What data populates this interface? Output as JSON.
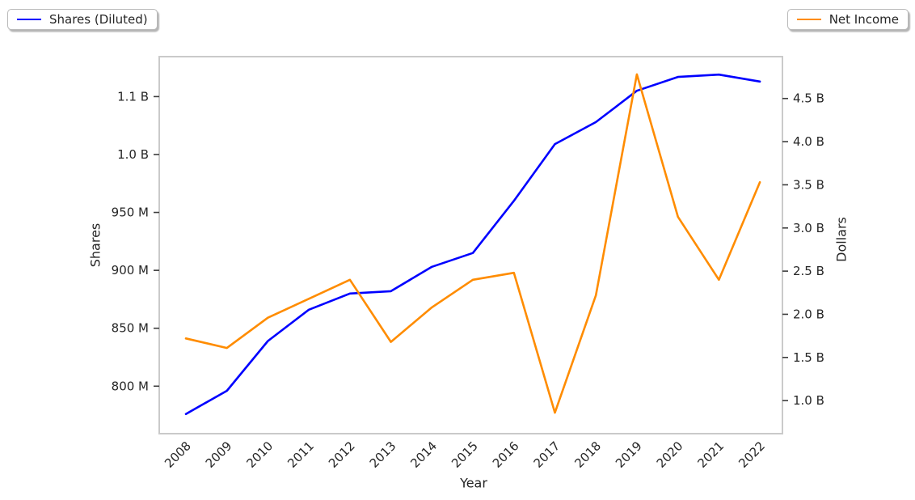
{
  "legend_left": {
    "label": "Shares (Diluted)"
  },
  "legend_right": {
    "label": "Net Income"
  },
  "colors": {
    "shares_line": "#0000ff",
    "net_income_line": "#ff8c00",
    "spine": "#cacaca",
    "tick_mark": "#3c3c3c",
    "text": "#262626",
    "background": "#ffffff"
  },
  "chart_data": {
    "type": "line",
    "title": "",
    "xlabel": "Year",
    "x": [
      2008,
      2009,
      2010,
      2011,
      2012,
      2013,
      2014,
      2015,
      2016,
      2017,
      2018,
      2019,
      2020,
      2021,
      2022
    ],
    "series": [
      {
        "name": "Shares (Diluted)",
        "axis": "left",
        "color": "#0000ff",
        "unit": "shares (millions)",
        "values": [
          776,
          796,
          839,
          866,
          880,
          882,
          903,
          915,
          960,
          1009,
          1028,
          1055,
          1067,
          1069,
          1063
        ]
      },
      {
        "name": "Net Income",
        "axis": "right",
        "color": "#ff8c00",
        "unit": "dollars (billions)",
        "values": [
          1.72,
          1.61,
          1.96,
          2.18,
          2.4,
          1.68,
          2.08,
          2.4,
          2.48,
          0.86,
          2.22,
          4.78,
          3.13,
          2.4,
          3.53
        ]
      }
    ],
    "left_axis": {
      "label": "Shares",
      "tick_values": [
        800,
        850,
        900,
        950,
        1000,
        1050
      ],
      "tick_labels": [
        "800 M",
        "850 M",
        "900 M",
        "950 M",
        "1.0 B",
        "1.1 B"
      ],
      "range": [
        759,
        1084.5
      ]
    },
    "right_axis": {
      "label": "Dollars",
      "tick_values": [
        1.0,
        1.5,
        2.0,
        2.5,
        3.0,
        3.5,
        4.0,
        4.5
      ],
      "tick_labels": [
        "1.0 B",
        "1.5 B",
        "2.0 B",
        "2.5 B",
        "3.0 B",
        "3.5 B",
        "4.0 B",
        "4.5 B"
      ],
      "range": [
        0.617,
        4.985
      ]
    },
    "xlim": [
      2007.35,
      2022.55
    ],
    "grid": false,
    "x_tick_rotation_deg": 45,
    "legend_positions": [
      "outside upper left",
      "outside upper right"
    ]
  }
}
